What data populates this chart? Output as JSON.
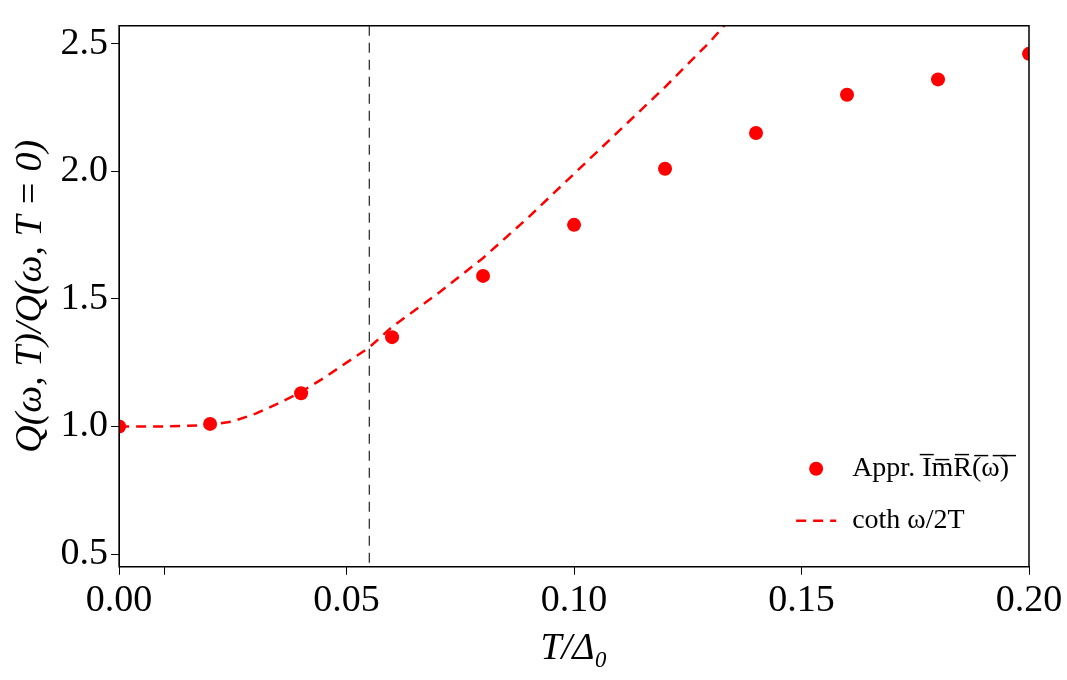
{
  "chart_data": {
    "type": "scatter",
    "xlabel": "T/Δ₀",
    "ylabel": "Q(ω, T)/Q(ω, T = 0)",
    "xlim": [
      0,
      0.2
    ],
    "ylim": [
      0.45,
      2.57
    ],
    "xticks": [
      {
        "value": 0,
        "label": "0.00"
      },
      {
        "value": 0.01,
        "label": null
      },
      {
        "value": 0.05,
        "label": "0.05"
      },
      {
        "value": 0.1,
        "label": "0.10"
      },
      {
        "value": 0.15,
        "label": "0.15"
      },
      {
        "value": 0.2,
        "label": "0.20"
      }
    ],
    "yticks": [
      {
        "value": 0.5,
        "label": "0.5"
      },
      {
        "value": 1,
        "label": "1.0"
      },
      {
        "value": 1.5,
        "label": "1.5"
      },
      {
        "value": 2,
        "label": "2.0"
      },
      {
        "value": 2.5,
        "label": "2.5"
      }
    ],
    "grid": false,
    "legend": "bottom right",
    "ref_lines": [
      {
        "axis": "x",
        "value": 0.055,
        "color": "#333333",
        "line_style": "dashed"
      }
    ],
    "series": [
      {
        "name": "Appr. I̅m̅R̅(̅ω̅)̅",
        "type": "scatter",
        "marker": "circle",
        "color": "#ff0000",
        "x": [
          0,
          0.02,
          0.04,
          0.06,
          0.08,
          0.1,
          0.12,
          0.14,
          0.16,
          0.18,
          0.2
        ],
        "values": [
          1.0,
          1.01,
          1.13,
          1.35,
          1.59,
          1.79,
          2.01,
          2.15,
          2.3,
          2.36,
          2.46
        ]
      },
      {
        "name": "coth ω/2T",
        "type": "line",
        "marker": "none",
        "line_style": "dashed",
        "color": "#ff0000",
        "x": [
          0,
          0.01,
          0.02,
          0.025,
          0.03,
          0.035,
          0.04,
          0.045,
          0.05,
          0.055,
          0.06,
          0.07,
          0.08,
          0.09,
          0.1,
          0.11,
          0.12,
          0.13,
          0.133
        ],
        "values": [
          1.0,
          1.0,
          1.005,
          1.02,
          1.05,
          1.09,
          1.135,
          1.19,
          1.25,
          1.31,
          1.39,
          1.52,
          1.66,
          1.82,
          1.99,
          2.16,
          2.33,
          2.51,
          2.57
        ]
      }
    ]
  }
}
